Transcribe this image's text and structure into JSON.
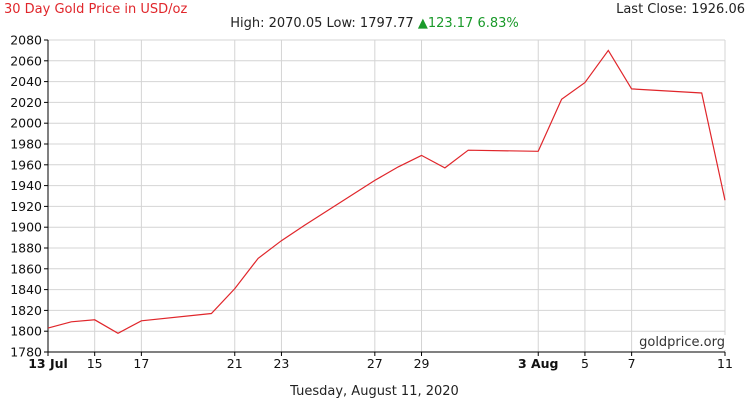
{
  "header": {
    "title": "30 Day Gold Price in USD/oz",
    "last_close_label": "Last Close: 1926.06",
    "high_label": "High: 2070.05",
    "low_label": "Low: 1797.77",
    "change_arrow": "▲",
    "change_value": "123.17",
    "change_percent": "6.83%"
  },
  "footer": {
    "date": "Tuesday, August 11, 2020"
  },
  "watermark": "goldprice.org",
  "colors": {
    "line": "#e0262b",
    "up": "#1a9a2a",
    "grid": "#d4d4d4",
    "axis": "#000000"
  },
  "chart_data": {
    "type": "line",
    "title": "30 Day Gold Price in USD/oz",
    "xlabel": "",
    "ylabel": "",
    "grid": true,
    "ylim": [
      1780,
      2080
    ],
    "yticks": [
      1780,
      1800,
      1820,
      1840,
      1860,
      1880,
      1900,
      1920,
      1940,
      1960,
      1980,
      2000,
      2020,
      2040,
      2060,
      2080
    ],
    "xlim": [
      "2020-07-13",
      "2020-08-11"
    ],
    "xticks": [
      {
        "date": "2020-07-13",
        "label": "13 Jul",
        "bold": true
      },
      {
        "date": "2020-07-15",
        "label": "15",
        "bold": false
      },
      {
        "date": "2020-07-17",
        "label": "17",
        "bold": false
      },
      {
        "date": "2020-07-21",
        "label": "21",
        "bold": false
      },
      {
        "date": "2020-07-23",
        "label": "23",
        "bold": false
      },
      {
        "date": "2020-07-27",
        "label": "27",
        "bold": false
      },
      {
        "date": "2020-07-29",
        "label": "29",
        "bold": false
      },
      {
        "date": "2020-08-03",
        "label": "3 Aug",
        "bold": true
      },
      {
        "date": "2020-08-05",
        "label": "5",
        "bold": false
      },
      {
        "date": "2020-08-07",
        "label": "7",
        "bold": false
      },
      {
        "date": "2020-08-11",
        "label": "11",
        "bold": false
      }
    ],
    "series": [
      {
        "points": [
          {
            "x": "2020-07-13",
            "y": 1803
          },
          {
            "x": "2020-07-14",
            "y": 1809
          },
          {
            "x": "2020-07-15",
            "y": 1811
          },
          {
            "x": "2020-07-16",
            "y": 1798
          },
          {
            "x": "2020-07-17",
            "y": 1810
          },
          {
            "x": "2020-07-20",
            "y": 1817
          },
          {
            "x": "2020-07-21",
            "y": 1841
          },
          {
            "x": "2020-07-22",
            "y": 1870
          },
          {
            "x": "2020-07-23",
            "y": 1887
          },
          {
            "x": "2020-07-24",
            "y": 1902
          },
          {
            "x": "2020-07-27",
            "y": 1945
          },
          {
            "x": "2020-07-28",
            "y": 1958
          },
          {
            "x": "2020-07-29",
            "y": 1969
          },
          {
            "x": "2020-07-30",
            "y": 1957
          },
          {
            "x": "2020-07-31",
            "y": 1974
          },
          {
            "x": "2020-08-03",
            "y": 1973
          },
          {
            "x": "2020-08-04",
            "y": 2023
          },
          {
            "x": "2020-08-05",
            "y": 2039
          },
          {
            "x": "2020-08-06",
            "y": 2070
          },
          {
            "x": "2020-08-07",
            "y": 2033
          },
          {
            "x": "2020-08-10",
            "y": 2029
          },
          {
            "x": "2020-08-11",
            "y": 1926
          }
        ]
      }
    ]
  }
}
